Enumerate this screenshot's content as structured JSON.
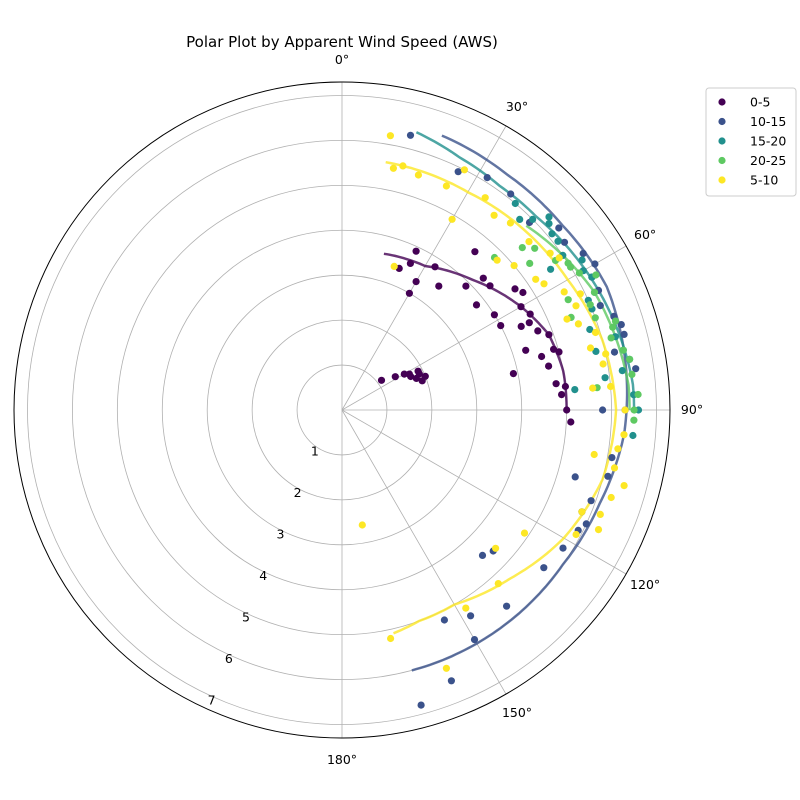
{
  "chart_data": {
    "type": "scatter",
    "projection": "polar",
    "title": "Polar Plot by Apparent Wind Speed (AWS)",
    "theta_zero": "top",
    "theta_direction": "clockwise",
    "theta_range_deg": [
      0,
      180
    ],
    "r_range": [
      0,
      7.3
    ],
    "grid": true,
    "legend_position": "top-right outside",
    "theta_ticks": [
      "0°",
      "30°",
      "60°",
      "90°",
      "120°",
      "150°",
      "180°"
    ],
    "theta_tick_values": [
      0,
      30,
      60,
      90,
      120,
      150,
      180
    ],
    "r_ticks": [
      "1",
      "2",
      "3",
      "4",
      "5",
      "6",
      "7"
    ],
    "r_tick_values": [
      1,
      2,
      3,
      4,
      5,
      6,
      7
    ],
    "series": [
      {
        "name": "0-5",
        "color": "#440154",
        "points": [
          [
            25,
            3.6
          ],
          [
            30,
            3.0
          ],
          [
            30,
            3.3
          ],
          [
            33,
            3.8
          ],
          [
            38,
            3.5
          ],
          [
            40,
            4.6
          ],
          [
            45,
            3.9
          ],
          [
            47,
            4.3
          ],
          [
            50,
            4.3
          ],
          [
            55,
            4.7
          ],
          [
            57,
            4.8
          ],
          [
            60,
            4.6
          ],
          [
            63,
            4.7
          ],
          [
            65,
            4.6
          ],
          [
            68,
            4.7
          ],
          [
            70,
            4.9
          ],
          [
            74,
            4.9
          ],
          [
            75,
            5.0
          ],
          [
            78,
            3.9
          ],
          [
            83,
            4.8
          ],
          [
            84,
            5.0
          ],
          [
            90,
            5.0
          ],
          [
            93,
            5.1
          ],
          [
            52,
            3.8
          ],
          [
            58,
            4.0
          ],
          [
            62,
            4.0
          ],
          [
            65,
            4.4
          ],
          [
            72,
            4.3
          ],
          [
            75,
            4.6
          ],
          [
            78,
            4.7
          ],
          [
            86,
            4.9
          ],
          [
            53,
            1.1
          ],
          [
            58,
            1.4
          ],
          [
            60,
            1.6
          ],
          [
            62,
            1.7
          ],
          [
            63,
            1.9
          ],
          [
            65,
            1.9
          ],
          [
            68,
            2.0
          ],
          [
            64,
            1.7
          ],
          [
            67,
            1.8
          ],
          [
            70,
            1.9
          ],
          [
            22,
            3.4
          ],
          [
            25,
            3.9
          ]
        ],
        "trend": [
          [
            15,
            3.6
          ],
          [
            30,
            3.7
          ],
          [
            45,
            4.1
          ],
          [
            60,
            4.6
          ],
          [
            70,
            4.9
          ],
          [
            80,
            5.0
          ],
          [
            90,
            5.0
          ]
        ]
      },
      {
        "name": "10-15",
        "color": "#3b528b",
        "points": [
          [
            14,
            6.3
          ],
          [
            26,
            5.9
          ],
          [
            32,
            6.1
          ],
          [
            38,
            6.1
          ],
          [
            45,
            5.9
          ],
          [
            50,
            6.3
          ],
          [
            53,
            6.2
          ],
          [
            57,
            6.4
          ],
          [
            60,
            6.5
          ],
          [
            62,
            6.3
          ],
          [
            65,
            6.3
          ],
          [
            68,
            6.2
          ],
          [
            71,
            6.4
          ],
          [
            73,
            6.5
          ],
          [
            75,
            6.5
          ],
          [
            78,
            6.2
          ],
          [
            82,
            6.6
          ],
          [
            90,
            6.3
          ],
          [
            90,
            5.8
          ],
          [
            100,
            6.1
          ],
          [
            104,
            6.1
          ],
          [
            106,
            5.4
          ],
          [
            110,
            5.9
          ],
          [
            113,
            5.8
          ],
          [
            122,
            5.8
          ],
          [
            128,
            5.7
          ],
          [
            133,
            4.6
          ],
          [
            136,
            4.5
          ],
          [
            140,
            5.7
          ],
          [
            148,
            5.4
          ],
          [
            150,
            5.9
          ],
          [
            154,
            5.2
          ],
          [
            158,
            6.5
          ],
          [
            165,
            6.8
          ],
          [
            115,
            6.0
          ],
          [
            117,
            5.9
          ]
        ],
        "trend": [
          [
            20,
            6.5
          ],
          [
            35,
            6.4
          ],
          [
            50,
            6.4
          ],
          [
            65,
            6.5
          ],
          [
            80,
            6.4
          ],
          [
            95,
            6.3
          ],
          [
            110,
            6.1
          ],
          [
            125,
            6.0
          ],
          [
            140,
            6.0
          ],
          [
            155,
            6.0
          ],
          [
            165,
            6.0
          ]
        ]
      },
      {
        "name": "15-20",
        "color": "#21908d",
        "points": [
          [
            40,
            6.0
          ],
          [
            43,
            5.8
          ],
          [
            45,
            6.0
          ],
          [
            47,
            6.3
          ],
          [
            50,
            6.1
          ],
          [
            52,
            6.1
          ],
          [
            55,
            6.0
          ],
          [
            58,
            6.3
          ],
          [
            60,
            6.2
          ],
          [
            62,
            6.3
          ],
          [
            65,
            6.2
          ],
          [
            68,
            6.0
          ],
          [
            72,
            5.8
          ],
          [
            75,
            6.3
          ],
          [
            78,
            6.4
          ],
          [
            80,
            6.5
          ],
          [
            83,
            5.9
          ],
          [
            85,
            5.2
          ],
          [
            87,
            6.5
          ],
          [
            90,
            6.6
          ],
          [
            95,
            6.5
          ],
          [
            48,
            6.2
          ],
          [
            56,
            5.6
          ],
          [
            66,
            6.0
          ],
          [
            77,
            5.8
          ],
          [
            82,
            6.3
          ]
        ],
        "trend": [
          [
            15,
            6.4
          ],
          [
            25,
            6.2
          ],
          [
            35,
            6.1
          ],
          [
            45,
            6.1
          ],
          [
            55,
            6.2
          ],
          [
            65,
            6.3
          ],
          [
            75,
            6.4
          ],
          [
            85,
            6.5
          ],
          [
            90,
            6.5
          ]
        ]
      },
      {
        "name": "20-25",
        "color": "#5ec962",
        "points": [
          [
            45,
            4.8
          ],
          [
            48,
            5.4
          ],
          [
            50,
            5.6
          ],
          [
            52,
            5.3
          ],
          [
            55,
            5.8
          ],
          [
            57,
            6.0
          ],
          [
            60,
            6.1
          ],
          [
            62,
            6.4
          ],
          [
            65,
            6.2
          ],
          [
            67,
            6.0
          ],
          [
            70,
            6.0
          ],
          [
            72,
            6.4
          ],
          [
            75,
            6.2
          ],
          [
            78,
            6.4
          ],
          [
            80,
            6.5
          ],
          [
            83,
            6.5
          ],
          [
            85,
            5.7
          ],
          [
            87,
            6.6
          ],
          [
            90,
            6.5
          ],
          [
            92,
            6.5
          ],
          [
            58,
            6.0
          ],
          [
            64,
            5.6
          ],
          [
            68,
            5.5
          ],
          [
            73,
            6.3
          ]
        ],
        "trend": [
          [
            45,
            5.8
          ],
          [
            55,
            6.0
          ],
          [
            65,
            6.2
          ],
          [
            75,
            6.3
          ],
          [
            85,
            6.4
          ],
          [
            90,
            6.4
          ]
        ]
      },
      {
        "name": "5-10",
        "color": "#fde725",
        "points": [
          [
            10,
            6.2
          ],
          [
            12,
            5.5
          ],
          [
            14,
            5.6
          ],
          [
            18,
            5.5
          ],
          [
            25,
            5.5
          ],
          [
            27,
            6.0
          ],
          [
            30,
            4.9
          ],
          [
            34,
            5.7
          ],
          [
            38,
            5.5
          ],
          [
            42,
            5.6
          ],
          [
            46,
            4.8
          ],
          [
            48,
            5.6
          ],
          [
            50,
            5.0
          ],
          [
            53,
            5.8
          ],
          [
            55,
            5.9
          ],
          [
            58,
            5.3
          ],
          [
            62,
            5.6
          ],
          [
            64,
            5.9
          ],
          [
            66,
            5.7
          ],
          [
            68,
            5.4
          ],
          [
            70,
            5.6
          ],
          [
            73,
            5.9
          ],
          [
            76,
            5.7
          ],
          [
            78,
            6.0
          ],
          [
            80,
            5.9
          ],
          [
            85,
            6.0
          ],
          [
            90,
            6.3
          ],
          [
            95,
            6.3
          ],
          [
            98,
            6.2
          ],
          [
            102,
            6.2
          ],
          [
            105,
            6.5
          ],
          [
            108,
            6.3
          ],
          [
            112,
            6.2
          ],
          [
            113,
            5.8
          ],
          [
            115,
            6.3
          ],
          [
            118,
            5.9
          ],
          [
            124,
            4.9
          ],
          [
            132,
            4.6
          ],
          [
            138,
            5.2
          ],
          [
            148,
            5.2
          ],
          [
            158,
            6.2
          ],
          [
            168,
            5.2
          ],
          [
            170,
            2.6
          ],
          [
            20,
            3.4
          ],
          [
            56,
            5.2
          ],
          [
            85,
            5.6
          ],
          [
            100,
            5.7
          ]
        ],
        "trend": [
          [
            10,
            5.6
          ],
          [
            20,
            5.6
          ],
          [
            30,
            5.6
          ],
          [
            45,
            5.7
          ],
          [
            60,
            5.8
          ],
          [
            75,
            6.0
          ],
          [
            90,
            6.1
          ],
          [
            105,
            6.0
          ],
          [
            120,
            5.7
          ],
          [
            135,
            5.3
          ],
          [
            150,
            5.0
          ],
          [
            160,
            5.0
          ],
          [
            167,
            5.1
          ]
        ]
      }
    ]
  }
}
